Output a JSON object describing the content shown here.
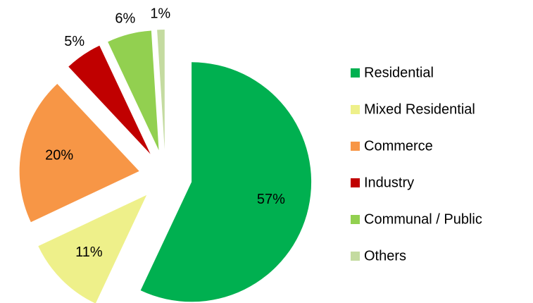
{
  "chart_data": {
    "type": "pie",
    "categories": [
      "Residential",
      "Mixed Residential",
      "Commerce",
      "Industry",
      "Communal / Public",
      "Others"
    ],
    "values": [
      57,
      11,
      20,
      5,
      6,
      1
    ],
    "value_labels": [
      "57%",
      "11%",
      "20%",
      "5%",
      "6%",
      "1%"
    ],
    "colors": [
      "#00b050",
      "#eef08a",
      "#f79646",
      "#c00000",
      "#92d050",
      "#c4dba0"
    ],
    "legend": "right"
  }
}
